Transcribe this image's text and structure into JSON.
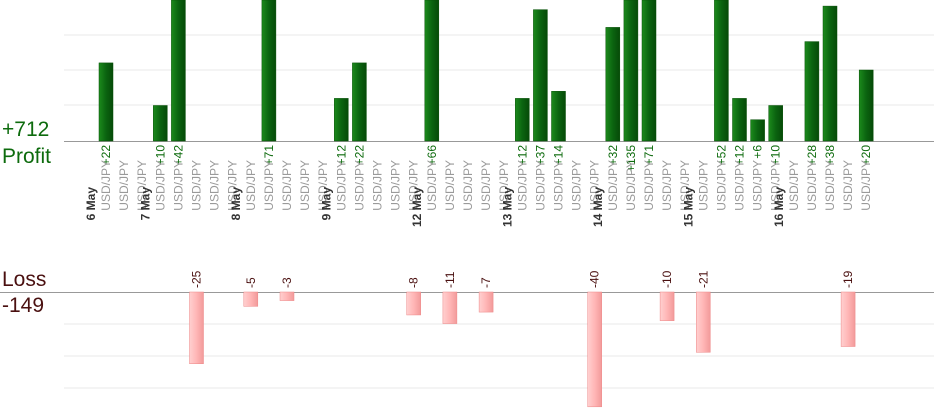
{
  "summary": {
    "profit_total": "+712",
    "profit_label": "Profit",
    "loss_label": "Loss",
    "loss_total": "-149"
  },
  "colors": {
    "profit_bar": "#0b6410",
    "profit_text": "#0d6b0d",
    "loss_bar": "#ffb6b6",
    "loss_text": "#4a1010",
    "date_text": "#333333",
    "pair_text": "#9a9a9a"
  },
  "chart_data": {
    "type": "bar",
    "ylim_profit": [
      0,
      40
    ],
    "ylim_loss": [
      0,
      -40
    ],
    "grid": true,
    "dates": [
      {
        "label": "6 May",
        "slot": 0
      },
      {
        "label": "7 May",
        "slot": 3
      },
      {
        "label": "8 May",
        "slot": 8
      },
      {
        "label": "9 May",
        "slot": 13
      },
      {
        "label": "12 May",
        "slot": 18
      },
      {
        "label": "13 May",
        "slot": 23
      },
      {
        "label": "14 May",
        "slot": 28
      },
      {
        "label": "15 May",
        "slot": 33
      },
      {
        "label": "16 May",
        "slot": 38
      }
    ],
    "trades": [
      {
        "pair": "USD/JPY",
        "value": 22
      },
      {
        "pair": "USD/JPY",
        "value": null
      },
      {
        "pair": "USD/JPY",
        "value": null
      },
      {
        "pair": "USD/JPY",
        "value": 10
      },
      {
        "pair": "USD/JPY",
        "value": 42
      },
      {
        "pair": "USD/JPY",
        "value": -25
      },
      {
        "pair": "USD/JPY",
        "value": null
      },
      {
        "pair": "USD/JPY",
        "value": null
      },
      {
        "pair": "USD/JPY",
        "value": -5
      },
      {
        "pair": "USD/JPY",
        "value": 71
      },
      {
        "pair": "USD/JPY",
        "value": -3
      },
      {
        "pair": "USD/JPY",
        "value": null
      },
      {
        "pair": "USD/JPY",
        "value": null
      },
      {
        "pair": "USD/JPY",
        "value": 12
      },
      {
        "pair": "USD/JPY",
        "value": 22
      },
      {
        "pair": "USD/JPY",
        "value": null
      },
      {
        "pair": "USD/JPY",
        "value": null
      },
      {
        "pair": "USD/JPY",
        "value": -8
      },
      {
        "pair": "USD/JPY",
        "value": 66
      },
      {
        "pair": "USD/JPY",
        "value": -11
      },
      {
        "pair": "USD/JPY",
        "value": null
      },
      {
        "pair": "USD/JPY",
        "value": -7
      },
      {
        "pair": "USD/JPY",
        "value": null
      },
      {
        "pair": "USD/JPY",
        "value": 12
      },
      {
        "pair": "USD/JPY",
        "value": 37
      },
      {
        "pair": "USD/JPY",
        "value": 14
      },
      {
        "pair": "USD/JPY",
        "value": null
      },
      {
        "pair": "USD/JPY",
        "value": -40
      },
      {
        "pair": "USD/JPY",
        "value": 32
      },
      {
        "pair": "USD/JPY",
        "value": 135
      },
      {
        "pair": "USD/JPY",
        "value": 71
      },
      {
        "pair": "USD/JPY",
        "value": -10
      },
      {
        "pair": "USD/JPY",
        "value": null
      },
      {
        "pair": "USD/JPY",
        "value": -21
      },
      {
        "pair": "USD/JPY",
        "value": 52
      },
      {
        "pair": "USD/JPY",
        "value": 12
      },
      {
        "pair": "USD/JPY",
        "value": 6
      },
      {
        "pair": "USD/JPY",
        "value": 10
      },
      {
        "pair": "USD/JPY",
        "value": null
      },
      {
        "pair": "USD/JPY",
        "value": 28
      },
      {
        "pair": "USD/JPY",
        "value": 38
      },
      {
        "pair": "USD/JPY",
        "value": -19
      },
      {
        "pair": "USD/JPY",
        "value": 20
      }
    ]
  }
}
